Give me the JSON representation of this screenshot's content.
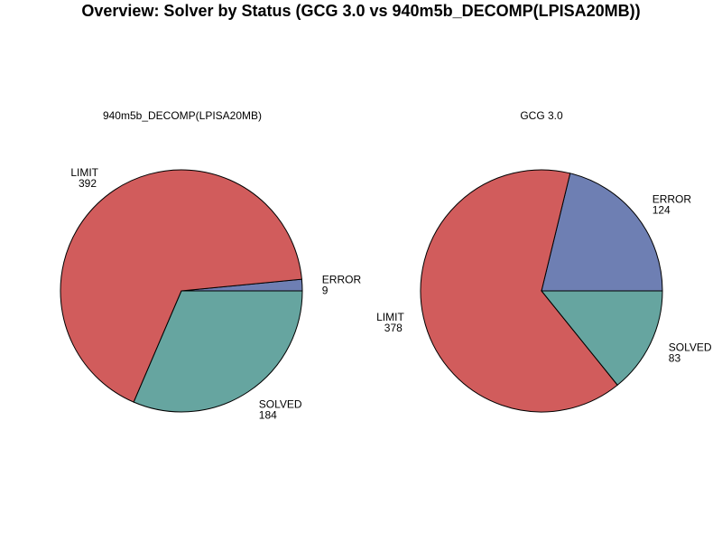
{
  "title": "Overview: Solver by Status (GCG 3.0 vs 940m5b_DECOMP(LPISA20MB))",
  "colors": {
    "ERROR": "#6e7fb3",
    "LIMIT": "#d15c5c",
    "SOLVED": "#66a5a0"
  },
  "chart_data": [
    {
      "type": "pie",
      "title": "940m5b_DECOMP(LPISA20MB)",
      "slices": [
        {
          "label": "ERROR",
          "value": 9
        },
        {
          "label": "LIMIT",
          "value": 392
        },
        {
          "label": "SOLVED",
          "value": 184
        }
      ]
    },
    {
      "type": "pie",
      "title": "GCG 3.0",
      "slices": [
        {
          "label": "ERROR",
          "value": 124
        },
        {
          "label": "LIMIT",
          "value": 378
        },
        {
          "label": "SOLVED",
          "value": 83
        }
      ]
    }
  ]
}
